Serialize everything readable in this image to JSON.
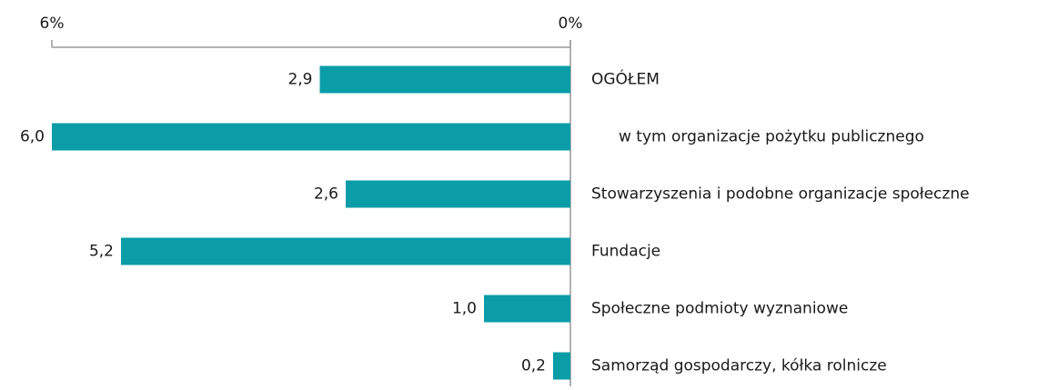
{
  "chart_data": {
    "type": "bar",
    "orientation": "horizontal",
    "categories": [
      "OGÓŁEM",
      "w tym organizacje pożytku publicznego",
      "Stowarzyszenia i podobne organizacje społeczne",
      "Fundacje",
      "Społeczne podmioty wyznaniowe",
      "Samorząd gospodarczy, kółka rolnicze"
    ],
    "values": [
      2.9,
      6.0,
      2.6,
      5.2,
      1.0,
      0.2
    ],
    "value_labels": [
      "2,9",
      "6,0",
      "2,6",
      "5,2",
      "1,0",
      "0,2"
    ],
    "color": "#0a9ca7",
    "xlim": [
      6,
      0
    ],
    "xticks": [
      {
        "value": 6,
        "label": "6%"
      },
      {
        "value": 0,
        "label": "0%"
      }
    ]
  }
}
